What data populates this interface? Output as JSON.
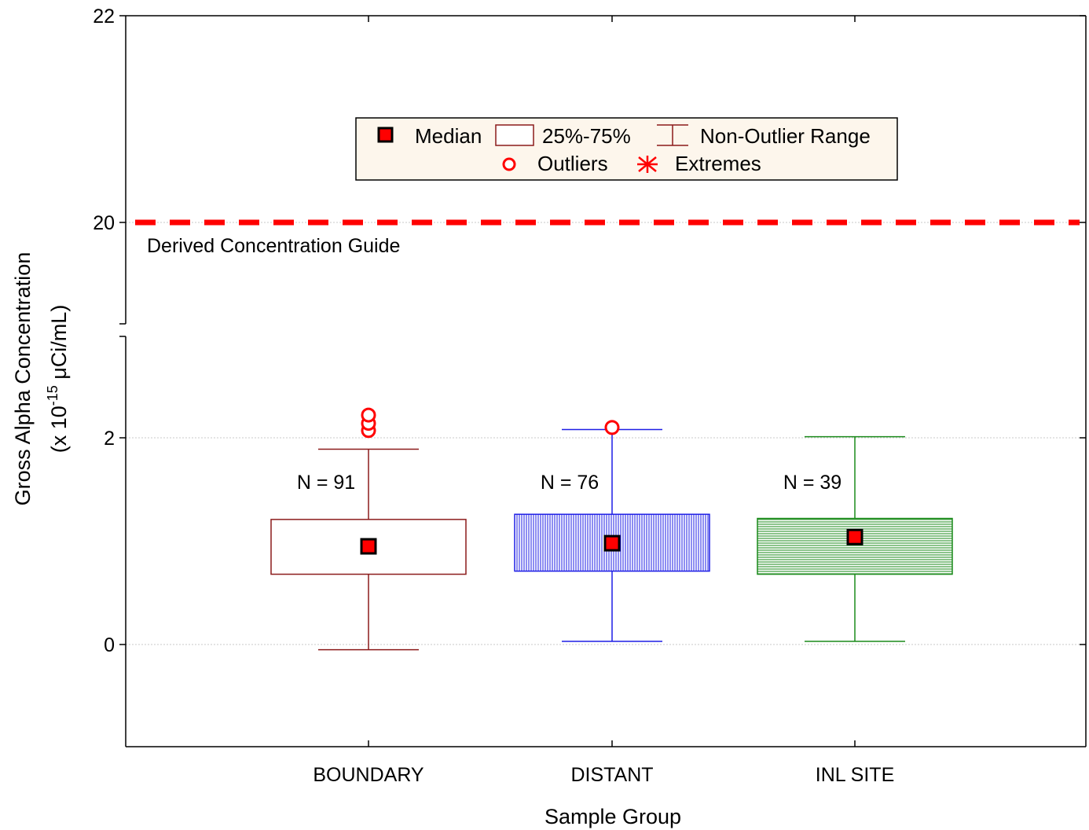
{
  "chart_data": {
    "type": "boxplot",
    "xlabel": "Sample Group",
    "ylabel_line1": "Gross Alpha Concentration",
    "ylabel_line2_prefix": "(x 10",
    "ylabel_line2_exp": "-15",
    "ylabel_line2_suffix": " μCi/mL)",
    "y_axis": {
      "lower_segment": {
        "range": [
          -1,
          3
        ],
        "ticks": [
          0,
          2
        ]
      },
      "upper_segment": {
        "range": [
          19,
          22
        ],
        "ticks": [
          20,
          22
        ]
      },
      "broken": true
    },
    "grid": "horizontal dotted at major ticks",
    "groups": [
      {
        "category": "BOUNDARY",
        "n_label": "N = 91",
        "color": "#8b1a1a",
        "fill": "none",
        "median": 0.95,
        "q1": 0.68,
        "q3": 1.21,
        "whisker_low": -0.05,
        "whisker_high": 1.89,
        "outliers": [
          2.07,
          2.14,
          2.22
        ]
      },
      {
        "category": "DISTANT",
        "n_label": "N = 76",
        "color": "#1e1ee6",
        "fill": "vertical-hatch",
        "median": 0.98,
        "q1": 0.71,
        "q3": 1.26,
        "whisker_low": 0.03,
        "whisker_high": 2.08,
        "outliers": [
          2.1
        ]
      },
      {
        "category": "INL SITE",
        "n_label": "N = 39",
        "color": "#1a8a1a",
        "fill": "horizontal-hatch",
        "median": 1.04,
        "q1": 0.68,
        "q3": 1.22,
        "whisker_low": 0.03,
        "whisker_high": 2.01,
        "outliers": []
      }
    ],
    "reference_line": {
      "value": 20,
      "label": "Derived Concentration Guide",
      "color": "#ff0000",
      "style": "dashed"
    },
    "legend": {
      "placement": "top-center",
      "items": [
        {
          "label": "Median",
          "symbol": "filled-square"
        },
        {
          "label": "25%-75%",
          "symbol": "box"
        },
        {
          "label": "Non-Outlier Range",
          "symbol": "whisker"
        },
        {
          "label": "Outliers",
          "symbol": "open-circle"
        },
        {
          "label": "Extremes",
          "symbol": "asterisk"
        }
      ]
    },
    "colors": {
      "marker_fill": "#ff0000",
      "marker_edge": "#000000",
      "legend_bg": "#fdf6ec"
    }
  }
}
